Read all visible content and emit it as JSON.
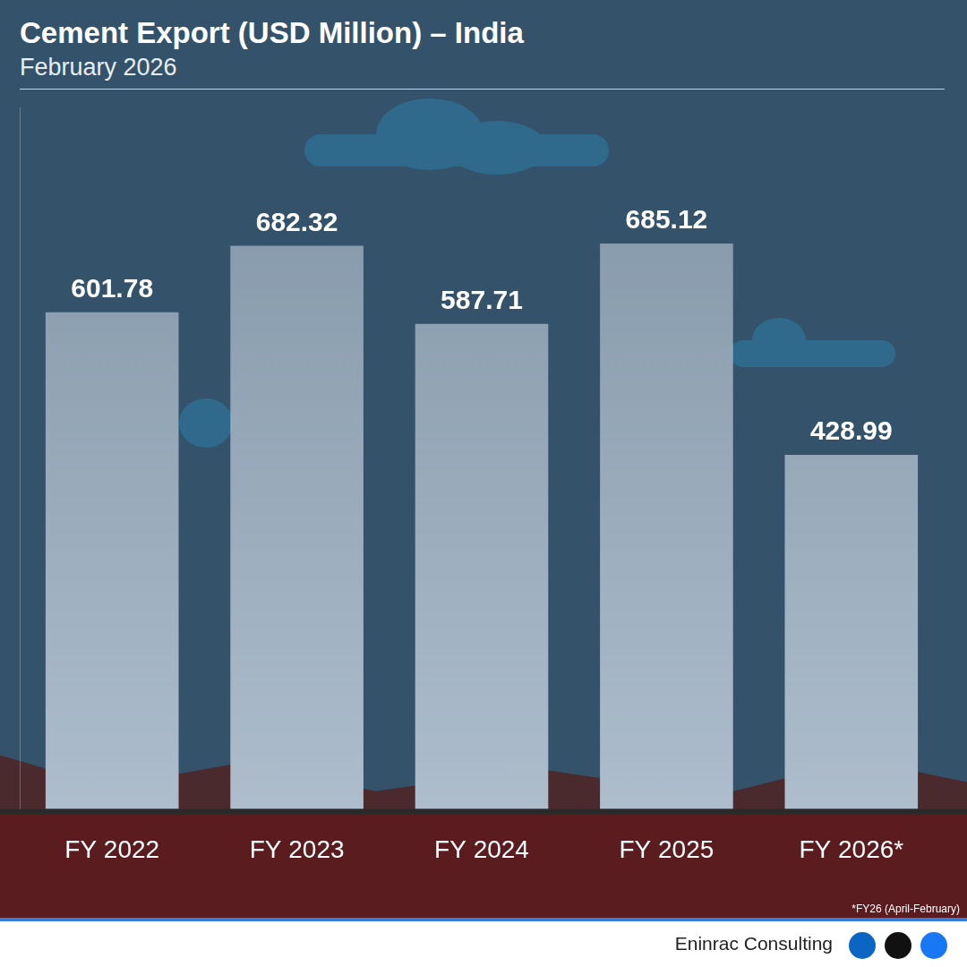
{
  "chart_data": {
    "type": "bar",
    "title": "Cement Export (USD Million) – India",
    "subtitle": "February 2026",
    "categories": [
      "FY 2022",
      "FY 2023",
      "FY 2024",
      "FY 2025",
      "FY 2026*"
    ],
    "values": [
      601.78,
      682.32,
      587.71,
      685.12,
      428.99
    ],
    "color": "#aebdcc",
    "ylim": [
      0,
      850
    ],
    "grid": false,
    "data_labels": true,
    "tick_labels": "x",
    "annotations": [
      "*FY26 (April-February)",
      "Eninrac Consulting"
    ]
  }
}
